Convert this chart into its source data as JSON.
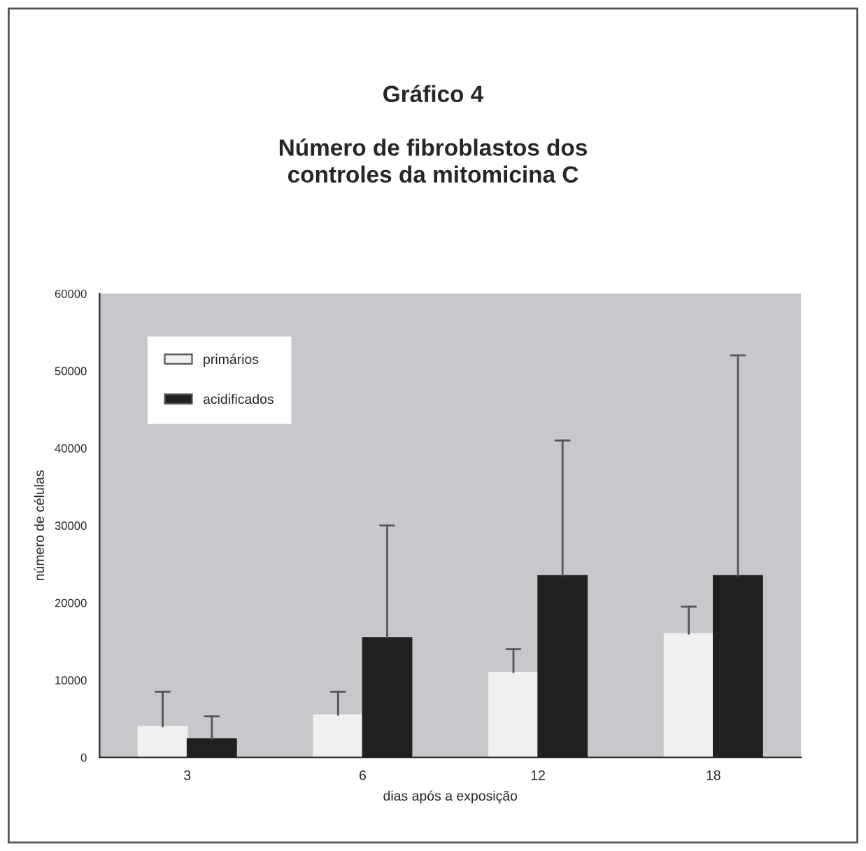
{
  "chart_data": {
    "type": "bar",
    "title": "Gráfico 4\n\nNúmero de fibroblastos dos\ncontroles da mitomicina C",
    "xlabel": "dias após a exposição",
    "ylabel": "número de células",
    "categories": [
      "3",
      "6",
      "12",
      "18"
    ],
    "series": [
      {
        "name": "primários",
        "color": "#f0f0f0",
        "values": [
          4000,
          5500,
          11000,
          16000
        ],
        "errors": [
          [
            4000,
            8500
          ],
          [
            5500,
            8500
          ],
          [
            11000,
            14000
          ],
          [
            16000,
            19500
          ]
        ]
      },
      {
        "name": "acidificados",
        "color": "#202020",
        "values": [
          2400,
          15500,
          23500,
          23500
        ],
        "errors": [
          [
            2400,
            5300
          ],
          [
            15500,
            30000
          ],
          [
            23500,
            41000
          ],
          [
            23500,
            52000
          ]
        ]
      }
    ],
    "ylim": [
      0,
      60000
    ],
    "yticks": [
      0,
      10000,
      20000,
      30000,
      40000,
      50000,
      60000
    ],
    "grid": false,
    "legend": "top left"
  }
}
